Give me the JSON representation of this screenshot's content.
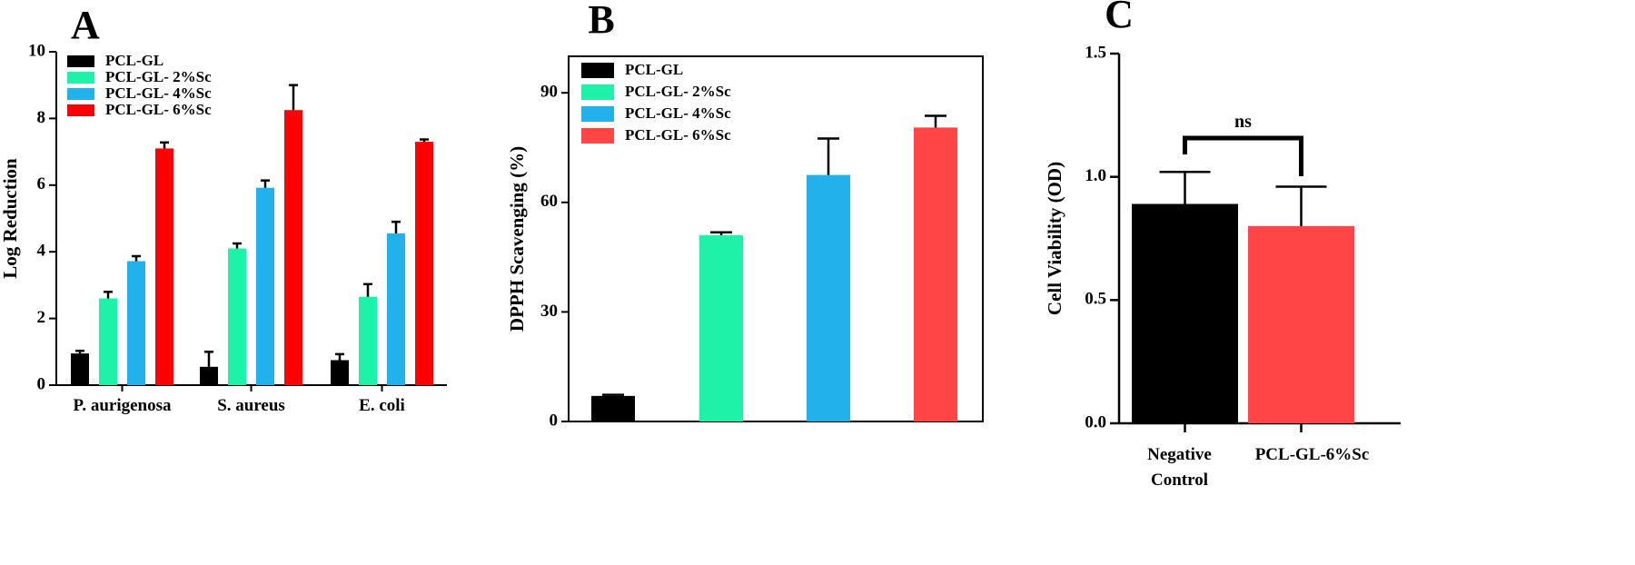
{
  "colors": {
    "black": "#000000",
    "green": "#1df2a8",
    "blue": "#22b1ea",
    "red": "#ff0000",
    "red_light": "#ff4545"
  },
  "chart_data": [
    {
      "panel": "A",
      "type": "bar",
      "ylabel": "Log Reduction",
      "ylim": [
        0,
        10
      ],
      "yticks": [
        "0",
        "2",
        "4",
        "6",
        "8",
        "10"
      ],
      "categories": [
        "P. aurigenosa",
        "S. aureus",
        "E. coli"
      ],
      "legend_position": "top-left",
      "series": [
        {
          "name": "PCL-GL",
          "color": "#000000",
          "values": [
            0.95,
            0.55,
            0.75
          ],
          "errors": [
            0.08,
            0.45,
            0.18
          ]
        },
        {
          "name": "PCL-GL- 2%Sc",
          "color": "#1df2a8",
          "values": [
            2.6,
            4.1,
            2.65
          ],
          "errors": [
            0.2,
            0.15,
            0.38
          ]
        },
        {
          "name": "PCL-GL- 4%Sc",
          "color": "#22b1ea",
          "values": [
            3.72,
            5.92,
            4.55
          ],
          "errors": [
            0.15,
            0.22,
            0.35
          ]
        },
        {
          "name": "PCL-GL- 6%Sc",
          "color": "#ff0000",
          "values": [
            7.1,
            8.25,
            7.3
          ],
          "errors": [
            0.18,
            0.75,
            0.07
          ]
        }
      ]
    },
    {
      "panel": "B",
      "type": "bar",
      "ylabel": "DPPH Scavenging (%)",
      "ylim": [
        0,
        100
      ],
      "yticks": [
        "0",
        "30",
        "60",
        "90"
      ],
      "legend_position": "top-left",
      "series": [
        {
          "name": "PCL-GL",
          "color": "#000000",
          "value": 7,
          "error": 0.3
        },
        {
          "name": "PCL-GL- 2%Sc",
          "color": "#1df2a8",
          "value": 51,
          "error": 0.8
        },
        {
          "name": "PCL-GL- 4%Sc",
          "color": "#22b1ea",
          "value": 67.5,
          "error": 10
        },
        {
          "name": "PCL-GL- 6%Sc",
          "color": "#ff4545",
          "value": 80.5,
          "error": 3.2
        }
      ]
    },
    {
      "panel": "C",
      "type": "bar",
      "ylabel": "Cell Viability (OD)",
      "ylim": [
        0,
        1.5
      ],
      "yticks": [
        "0.0",
        "0.5",
        "1.0",
        "1.5"
      ],
      "categories": [
        {
          "lines": [
            "Negative",
            "Control"
          ],
          "value": 0.89,
          "error": 0.13,
          "color": "#000000"
        },
        {
          "lines": [
            "PCL-GL-6%Sc"
          ],
          "value": 0.8,
          "error": 0.16,
          "color": "#ff4545"
        }
      ],
      "annotation": "ns"
    }
  ]
}
